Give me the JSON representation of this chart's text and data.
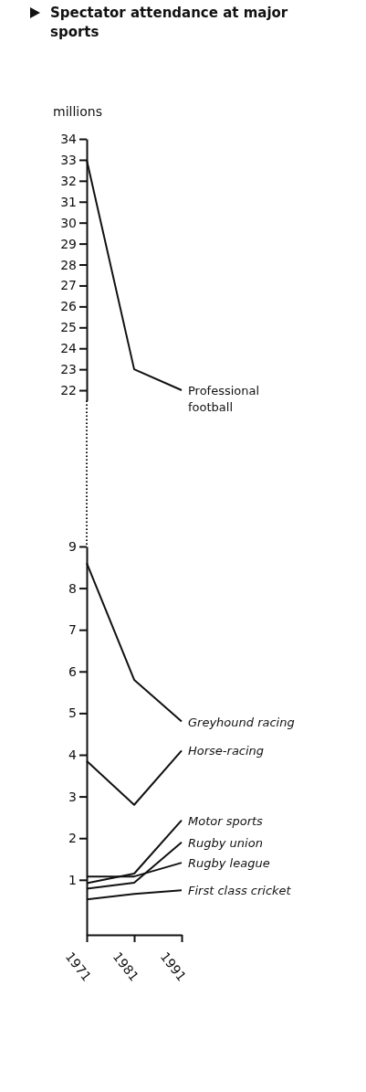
{
  "chart_data": [
    {
      "type": "line",
      "title": "Spectator attendance at major sports",
      "ylabel": "millions",
      "categories": [
        null,
        null,
        null
      ],
      "ylim": [
        21.5,
        34
      ],
      "yticks": [
        22,
        23,
        24,
        25,
        26,
        27,
        28,
        29,
        30,
        31,
        32,
        33,
        34
      ],
      "tick_labels": "y",
      "grid": false,
      "legend": false,
      "marker": "none",
      "series": [
        {
          "name": "Professional football",
          "color": "#111111",
          "values": [
            33.0,
            23.0,
            22.0
          ]
        }
      ]
    },
    {
      "type": "line",
      "categories": [
        "1971",
        "1981",
        "1991"
      ],
      "ylim": [
        -0.32,
        9
      ],
      "yticks": [
        1,
        2,
        3,
        4,
        5,
        6,
        7,
        8,
        9
      ],
      "grid": false,
      "legend": false,
      "marker": "none",
      "series": [
        {
          "name": "Greyhound racing",
          "color": "#111111",
          "values": [
            8.6,
            5.8,
            4.8
          ]
        },
        {
          "name": "Horse-racing",
          "color": "#111111",
          "values": [
            3.85,
            2.8,
            4.1
          ]
        },
        {
          "name": "Motor sports",
          "color": "#111111",
          "values": [
            0.92,
            1.15,
            2.43
          ]
        },
        {
          "name": "Rugby union",
          "color": "#111111",
          "values": [
            0.79,
            0.93,
            1.9
          ]
        },
        {
          "name": "Rugby league",
          "color": "#111111",
          "values": [
            1.08,
            1.08,
            1.41
          ]
        },
        {
          "name": "First class cricket",
          "color": "#111111",
          "values": [
            0.53,
            0.66,
            0.75
          ]
        }
      ]
    }
  ]
}
